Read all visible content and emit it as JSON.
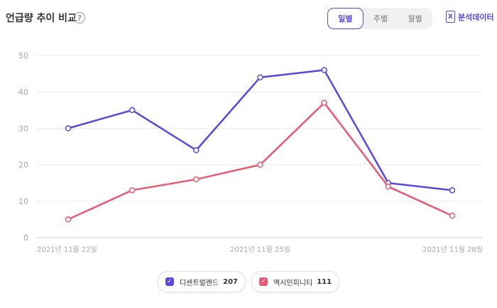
{
  "header": {
    "title": "언급량 추이 비교",
    "help_glyph": "?",
    "period_options": [
      {
        "label": "일별",
        "active": true
      },
      {
        "label": "주별",
        "active": false
      },
      {
        "label": "월별",
        "active": false
      }
    ],
    "export_label": "분석데이터",
    "export_icon": "excel-icon",
    "accent_color": "#5a48e0"
  },
  "chart_data": {
    "type": "line",
    "x": [
      "2021-11-22",
      "2021-11-23",
      "2021-11-24",
      "2021-11-25",
      "2021-11-26",
      "2021-11-27",
      "2021-11-28"
    ],
    "xtick_labels": [
      "2021년 11월 22일",
      "2021년 11월 25일",
      "2021년 11월 28일"
    ],
    "xtick_index": [
      0,
      3,
      6
    ],
    "ylim": [
      0,
      50
    ],
    "yticks": [
      0,
      10,
      20,
      30,
      40,
      50
    ],
    "grid": true,
    "series": [
      {
        "name": "디센트럴랜드",
        "total": "207",
        "color": "#5b47e0",
        "values": [
          30,
          35,
          24,
          44,
          46,
          15,
          13
        ]
      },
      {
        "name": "엑시인피니티",
        "total": "111",
        "color": "#e85a74",
        "values": [
          5,
          13,
          16,
          20,
          37,
          14,
          6
        ]
      }
    ],
    "legend_position": "bottom"
  }
}
